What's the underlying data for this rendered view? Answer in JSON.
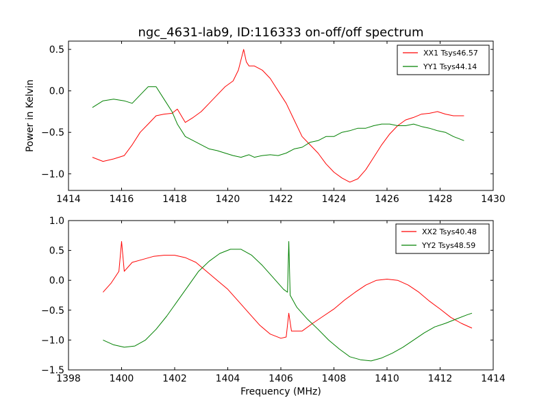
{
  "chart_data": [
    {
      "type": "line",
      "title": "ngc_4631-lab9, ID:116333 on-off/off spectrum",
      "xlabel": "",
      "ylabel": "Power in Kelvin",
      "xlim": [
        1414,
        1430
      ],
      "ylim": [
        -1.2,
        0.6
      ],
      "xticks": [
        1414,
        1416,
        1418,
        1420,
        1422,
        1424,
        1426,
        1428,
        1430
      ],
      "yticks": [
        -1.0,
        -0.5,
        0.0,
        0.5
      ],
      "xtick_labels": [
        "1414",
        "1416",
        "1418",
        "1420",
        "1422",
        "1424",
        "1426",
        "1428",
        "1430"
      ],
      "ytick_labels": [
        "−1.0",
        "−0.5",
        "0.0",
        "0.5"
      ],
      "grid": false,
      "legend_position": "top-right",
      "series": [
        {
          "name": "XX1 Tsys46.57",
          "color": "#ff0000",
          "x": [
            1414.9,
            1415.3,
            1415.7,
            1416.1,
            1416.4,
            1416.7,
            1417.0,
            1417.3,
            1417.6,
            1417.9,
            1418.1,
            1418.4,
            1418.7,
            1419.0,
            1419.3,
            1419.6,
            1419.9,
            1420.2,
            1420.4,
            1420.6,
            1420.7,
            1420.8,
            1421.0,
            1421.3,
            1421.6,
            1421.9,
            1422.2,
            1422.5,
            1422.8,
            1423.1,
            1423.4,
            1423.7,
            1424.0,
            1424.3,
            1424.6,
            1424.9,
            1425.2,
            1425.5,
            1425.8,
            1426.1,
            1426.4,
            1426.7,
            1427.0,
            1427.3,
            1427.6,
            1427.9,
            1428.2,
            1428.5,
            1428.9
          ],
          "y": [
            -0.8,
            -0.85,
            -0.82,
            -0.78,
            -0.65,
            -0.5,
            -0.4,
            -0.3,
            -0.28,
            -0.27,
            -0.22,
            -0.38,
            -0.32,
            -0.25,
            -0.15,
            -0.05,
            0.05,
            0.12,
            0.25,
            0.5,
            0.35,
            0.3,
            0.3,
            0.25,
            0.15,
            0.0,
            -0.15,
            -0.35,
            -0.55,
            -0.65,
            -0.75,
            -0.88,
            -0.98,
            -1.05,
            -1.1,
            -1.06,
            -0.95,
            -0.8,
            -0.65,
            -0.52,
            -0.42,
            -0.35,
            -0.32,
            -0.28,
            -0.27,
            -0.25,
            -0.28,
            -0.3,
            -0.3
          ]
        },
        {
          "name": "YY1 Tsys44.14",
          "color": "#008000",
          "x": [
            1414.9,
            1415.3,
            1415.7,
            1416.1,
            1416.4,
            1416.7,
            1417.0,
            1417.3,
            1417.6,
            1417.9,
            1418.1,
            1418.4,
            1418.7,
            1419.0,
            1419.3,
            1419.6,
            1419.9,
            1420.2,
            1420.5,
            1420.8,
            1421.0,
            1421.3,
            1421.6,
            1421.9,
            1422.2,
            1422.5,
            1422.8,
            1423.1,
            1423.4,
            1423.7,
            1424.0,
            1424.3,
            1424.6,
            1424.9,
            1425.2,
            1425.5,
            1425.8,
            1426.1,
            1426.4,
            1426.7,
            1427.0,
            1427.3,
            1427.6,
            1427.9,
            1428.2,
            1428.5,
            1428.9
          ],
          "y": [
            -0.2,
            -0.12,
            -0.1,
            -0.12,
            -0.15,
            -0.05,
            0.05,
            0.05,
            -0.1,
            -0.25,
            -0.4,
            -0.55,
            -0.6,
            -0.65,
            -0.7,
            -0.72,
            -0.75,
            -0.78,
            -0.8,
            -0.77,
            -0.8,
            -0.78,
            -0.77,
            -0.78,
            -0.75,
            -0.7,
            -0.68,
            -0.62,
            -0.6,
            -0.55,
            -0.55,
            -0.5,
            -0.48,
            -0.45,
            -0.45,
            -0.42,
            -0.4,
            -0.4,
            -0.42,
            -0.42,
            -0.4,
            -0.43,
            -0.45,
            -0.48,
            -0.5,
            -0.55,
            -0.6
          ]
        }
      ]
    },
    {
      "type": "line",
      "title": "",
      "xlabel": "Frequency (MHz)",
      "ylabel": "",
      "xlim": [
        1398,
        1414
      ],
      "ylim": [
        -1.5,
        1.0
      ],
      "xticks": [
        1398,
        1400,
        1402,
        1404,
        1406,
        1408,
        1410,
        1412,
        1414
      ],
      "yticks": [
        -1.5,
        -1.0,
        -0.5,
        0.0,
        0.5,
        1.0
      ],
      "xtick_labels": [
        "1398",
        "1400",
        "1402",
        "1404",
        "1406",
        "1408",
        "1410",
        "1412",
        "1414"
      ],
      "ytick_labels": [
        "−1.5",
        "−1.0",
        "−0.5",
        "0.0",
        "0.5",
        "1.0"
      ],
      "grid": false,
      "legend_position": "top-right",
      "series": [
        {
          "name": "XX2 Tsys40.48",
          "color": "#ff0000",
          "x": [
            1399.3,
            1399.6,
            1399.9,
            1400.0,
            1400.1,
            1400.4,
            1400.8,
            1401.2,
            1401.6,
            1402.0,
            1402.4,
            1402.8,
            1403.2,
            1403.6,
            1404.0,
            1404.4,
            1404.8,
            1405.2,
            1405.6,
            1406.0,
            1406.2,
            1406.3,
            1406.4,
            1406.8,
            1407.2,
            1407.6,
            1408.0,
            1408.4,
            1408.8,
            1409.2,
            1409.6,
            1410.0,
            1410.4,
            1410.8,
            1411.2,
            1411.6,
            1412.0,
            1412.4,
            1412.8,
            1413.2
          ],
          "y": [
            -0.2,
            -0.05,
            0.15,
            0.65,
            0.15,
            0.3,
            0.35,
            0.4,
            0.42,
            0.42,
            0.38,
            0.3,
            0.15,
            0.0,
            -0.15,
            -0.35,
            -0.55,
            -0.75,
            -0.9,
            -0.97,
            -0.95,
            -0.55,
            -0.85,
            -0.85,
            -0.72,
            -0.6,
            -0.48,
            -0.33,
            -0.2,
            -0.08,
            0.0,
            0.02,
            0.0,
            -0.08,
            -0.2,
            -0.35,
            -0.48,
            -0.62,
            -0.72,
            -0.8
          ]
        },
        {
          "name": "YY2 Tsys48.59",
          "color": "#008000",
          "x": [
            1399.3,
            1399.7,
            1400.1,
            1400.5,
            1400.9,
            1401.3,
            1401.7,
            1402.1,
            1402.5,
            1402.9,
            1403.3,
            1403.7,
            1404.1,
            1404.5,
            1404.9,
            1405.3,
            1405.7,
            1406.1,
            1406.25,
            1406.3,
            1406.35,
            1406.6,
            1407.0,
            1407.4,
            1407.8,
            1408.2,
            1408.6,
            1409.0,
            1409.4,
            1409.8,
            1410.2,
            1410.6,
            1411.0,
            1411.4,
            1411.8,
            1412.2,
            1412.6,
            1413.0,
            1413.2
          ],
          "y": [
            -1.0,
            -1.08,
            -1.12,
            -1.1,
            -1.0,
            -0.82,
            -0.6,
            -0.35,
            -0.1,
            0.15,
            0.32,
            0.45,
            0.52,
            0.52,
            0.42,
            0.25,
            0.05,
            -0.15,
            -0.2,
            0.65,
            -0.25,
            -0.45,
            -0.65,
            -0.82,
            -1.0,
            -1.15,
            -1.28,
            -1.33,
            -1.35,
            -1.3,
            -1.22,
            -1.12,
            -1.0,
            -0.88,
            -0.78,
            -0.72,
            -0.65,
            -0.58,
            -0.55
          ]
        }
      ]
    }
  ]
}
